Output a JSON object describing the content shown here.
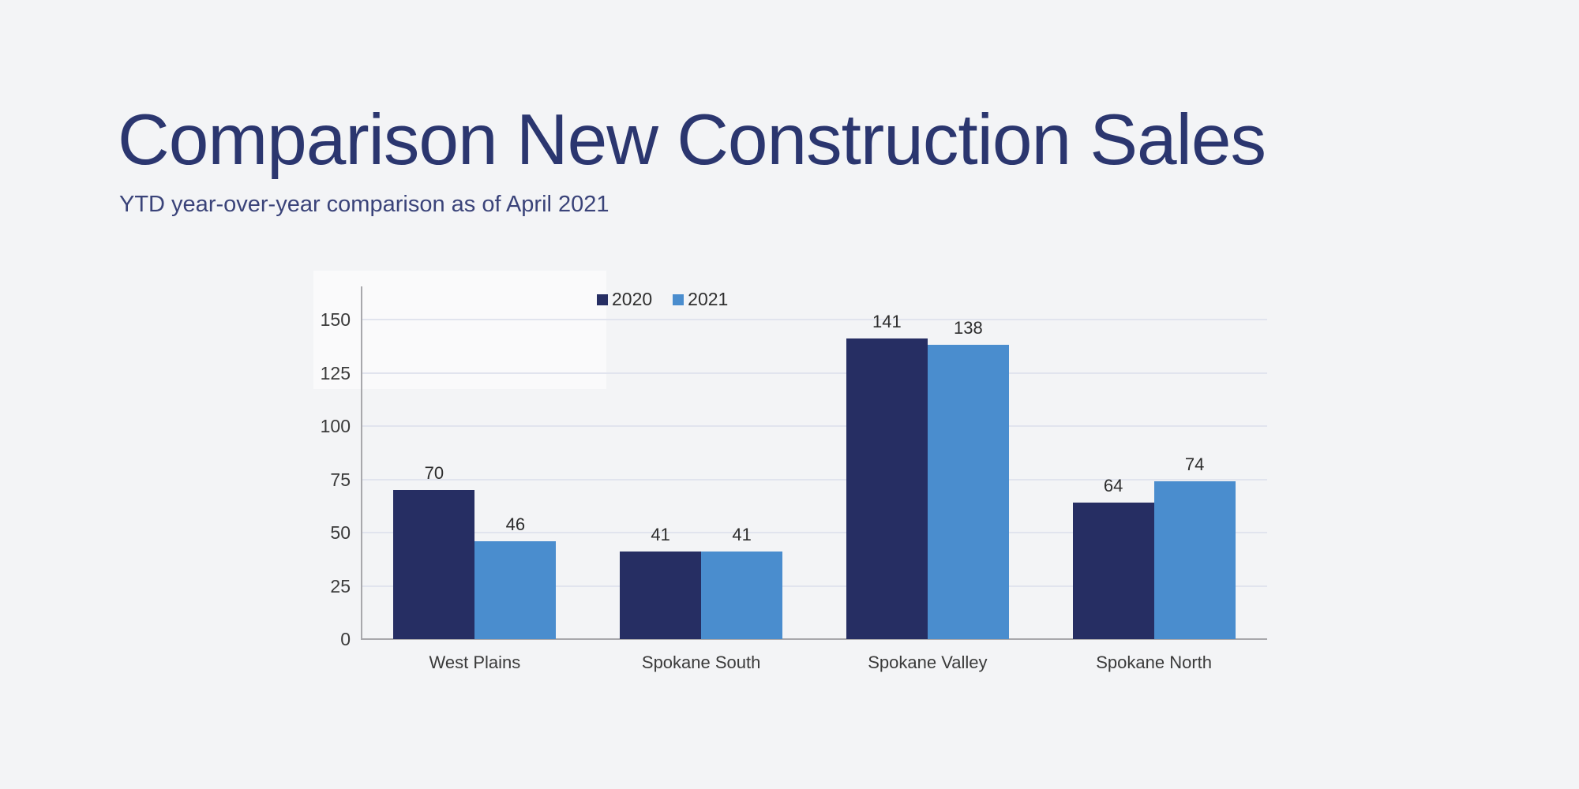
{
  "page": {
    "background_color": "#f3f4f6",
    "title": "Comparison New Construction Sales",
    "title_color": "#2b366f",
    "subtitle": "YTD year-over-year comparison as of April 2021",
    "subtitle_color": "#3a4379"
  },
  "chart_data": {
    "type": "bar",
    "title": "",
    "xlabel": "",
    "ylabel": "",
    "categories": [
      "West Plains",
      "Spokane South",
      "Spokane Valley",
      "Spokane North"
    ],
    "series": [
      {
        "name": "2020",
        "color": "#262e63",
        "values": [
          70,
          41,
          141,
          64
        ]
      },
      {
        "name": "2021",
        "color": "#4a8dce",
        "values": [
          46,
          41,
          138,
          74
        ]
      }
    ],
    "ylim": [
      0,
      150
    ],
    "yticks": [
      0,
      25,
      50,
      75,
      100,
      125,
      150
    ],
    "grid": true,
    "data_labels": true,
    "legend_position": "top-center",
    "colors": {
      "gridline": "#e1e4ee",
      "axis_line": "#a8a8ac",
      "tick_label": "#3a3a3a",
      "category_label": "#3a3a3a",
      "data_label": "#2d2d2d",
      "legend_label": "#2f2f2f"
    }
  }
}
